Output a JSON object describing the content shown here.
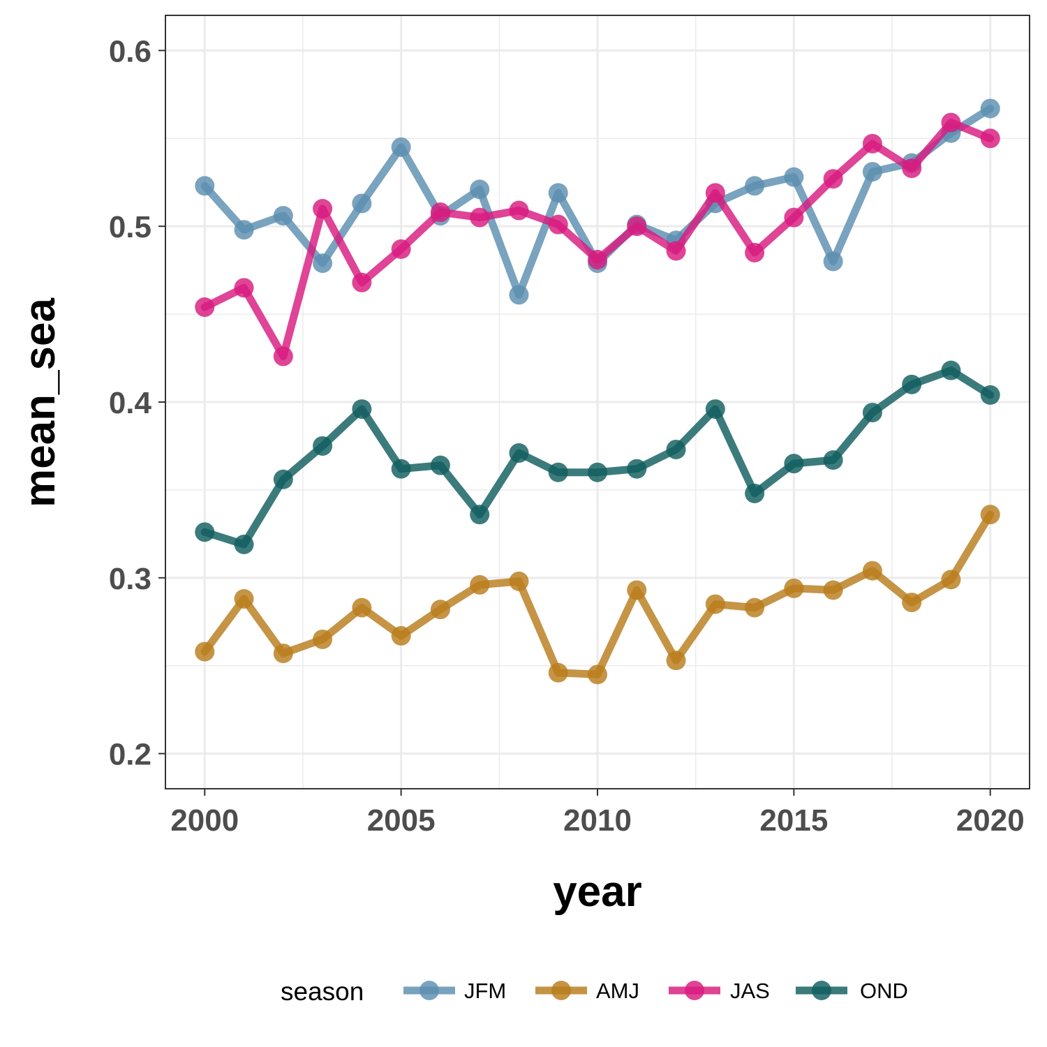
{
  "chart_data": {
    "type": "line",
    "xlabel": "year",
    "ylabel": "mean_sea",
    "xlim": [
      1999,
      2021
    ],
    "ylim": [
      0.18,
      0.62
    ],
    "x_ticks": [
      2000,
      2005,
      2010,
      2015,
      2020
    ],
    "x_tick_labels": [
      "2000",
      "2005",
      "2010",
      "2015",
      "2020"
    ],
    "y_ticks": [
      0.2,
      0.3,
      0.4,
      0.5,
      0.6
    ],
    "y_tick_labels": [
      "0.2",
      "0.3",
      "0.4",
      "0.5",
      "0.6"
    ],
    "grid": true,
    "legend": {
      "title": "season",
      "position": "bottom"
    },
    "x": [
      2000,
      2001,
      2002,
      2003,
      2004,
      2005,
      2006,
      2007,
      2008,
      2009,
      2010,
      2011,
      2012,
      2013,
      2014,
      2015,
      2016,
      2017,
      2018,
      2019,
      2020
    ],
    "series": [
      {
        "name": "JFM",
        "color": "#5b8fb0",
        "values": [
          0.523,
          0.498,
          0.506,
          0.479,
          0.513,
          0.545,
          0.506,
          0.521,
          0.461,
          0.519,
          0.479,
          0.501,
          0.492,
          0.513,
          0.523,
          0.528,
          0.48,
          0.531,
          0.536,
          0.553,
          0.567
        ]
      },
      {
        "name": "AMJ",
        "color": "#b87d1c",
        "values": [
          0.258,
          0.288,
          0.257,
          0.265,
          0.283,
          0.267,
          0.282,
          0.296,
          0.298,
          0.246,
          0.245,
          0.293,
          0.253,
          0.285,
          0.283,
          0.294,
          0.293,
          0.304,
          0.286,
          0.299,
          0.336
        ]
      },
      {
        "name": "JAS",
        "color": "#d81b7f",
        "values": [
          0.454,
          0.465,
          0.426,
          0.51,
          0.468,
          0.487,
          0.508,
          0.505,
          0.509,
          0.501,
          0.481,
          0.5,
          0.486,
          0.519,
          0.485,
          0.505,
          0.527,
          0.547,
          0.533,
          0.559,
          0.55
        ]
      },
      {
        "name": "OND",
        "color": "#115e5f",
        "values": [
          0.326,
          0.319,
          0.356,
          0.375,
          0.396,
          0.362,
          0.364,
          0.336,
          0.371,
          0.36,
          0.36,
          0.362,
          0.373,
          0.396,
          0.348,
          0.365,
          0.367,
          0.394,
          0.41,
          0.418,
          0.404
        ]
      }
    ]
  }
}
